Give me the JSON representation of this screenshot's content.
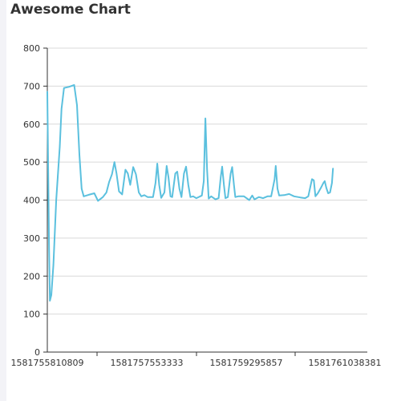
{
  "page": {
    "title": "Awesome Chart"
  },
  "colors": {
    "line": "#5bc0de",
    "grid": "#d9d9d9",
    "axis": "#333333",
    "background": "#ffffff"
  },
  "chart_data": {
    "type": "line",
    "title": "Awesome Chart",
    "xlabel": "",
    "ylabel": "",
    "ylim": [
      0,
      800
    ],
    "y_ticks": [
      0,
      100,
      200,
      300,
      400,
      500,
      600,
      700,
      800
    ],
    "x_ticks": [
      "1581755810809",
      "1581757553333",
      "1581759295857",
      "1581761038381"
    ],
    "xlim": [
      1581755810809,
      1581760984385
    ],
    "grid": "horizontal",
    "legend": "none",
    "series": [
      {
        "color": "#5bc0de",
        "points": [
          [
            1581755810809,
            685
          ],
          [
            1581755839000,
            270
          ],
          [
            1581755852000,
            135
          ],
          [
            1581755876000,
            150
          ],
          [
            1581755910000,
            230
          ],
          [
            1581755955000,
            400
          ],
          [
            1581756012000,
            540
          ],
          [
            1581756040000,
            640
          ],
          [
            1581756080000,
            695
          ],
          [
            1581756160000,
            698
          ],
          [
            1581756245000,
            703
          ],
          [
            1581756290000,
            650
          ],
          [
            1581756330000,
            520
          ],
          [
            1581756366000,
            430
          ],
          [
            1581756400000,
            410
          ],
          [
            1581756480000,
            414
          ],
          [
            1581756570000,
            418
          ],
          [
            1581756630000,
            398
          ],
          [
            1581756710000,
            408
          ],
          [
            1581756766000,
            420
          ],
          [
            1581756810000,
            448
          ],
          [
            1581756856000,
            468
          ],
          [
            1581756896000,
            500
          ],
          [
            1581756930000,
            470
          ],
          [
            1581756970000,
            423
          ],
          [
            1581757020000,
            415
          ],
          [
            1581757074000,
            480
          ],
          [
            1581757112000,
            470
          ],
          [
            1581757152000,
            440
          ],
          [
            1581757200000,
            487
          ],
          [
            1581757244000,
            468
          ],
          [
            1581757290000,
            420
          ],
          [
            1581757330000,
            410
          ],
          [
            1581757380000,
            413
          ],
          [
            1581757432000,
            408
          ],
          [
            1581757520000,
            408
          ],
          [
            1581757560000,
            445
          ],
          [
            1581757588000,
            496
          ],
          [
            1581757620000,
            440
          ],
          [
            1581757652000,
            406
          ],
          [
            1581757704000,
            420
          ],
          [
            1581757740000,
            490
          ],
          [
            1581757770000,
            460
          ],
          [
            1581757802000,
            410
          ],
          [
            1581757830000,
            408
          ],
          [
            1581757880000,
            470
          ],
          [
            1581757912000,
            475
          ],
          [
            1581757946000,
            430
          ],
          [
            1581757980000,
            408
          ],
          [
            1581758020000,
            470
          ],
          [
            1581758054000,
            488
          ],
          [
            1581758090000,
            440
          ],
          [
            1581758124000,
            408
          ],
          [
            1581758170000,
            410
          ],
          [
            1581758220000,
            405
          ],
          [
            1581758310000,
            412
          ],
          [
            1581758340000,
            450
          ],
          [
            1581758367000,
            615
          ],
          [
            1581758394000,
            480
          ],
          [
            1581758420000,
            404
          ],
          [
            1581758460000,
            410
          ],
          [
            1581758530000,
            402
          ],
          [
            1581758580000,
            405
          ],
          [
            1581758614000,
            460
          ],
          [
            1581758638000,
            488
          ],
          [
            1581758666000,
            440
          ],
          [
            1581758690000,
            405
          ],
          [
            1581758730000,
            408
          ],
          [
            1581758775000,
            470
          ],
          [
            1581758800000,
            487
          ],
          [
            1581758828000,
            440
          ],
          [
            1581758850000,
            408
          ],
          [
            1581758900000,
            410
          ],
          [
            1581758990000,
            410
          ],
          [
            1581759076000,
            400
          ],
          [
            1581759124000,
            412
          ],
          [
            1581759160000,
            402
          ],
          [
            1581759230000,
            408
          ],
          [
            1581759300000,
            405
          ],
          [
            1581759370000,
            410
          ],
          [
            1581759430000,
            410
          ],
          [
            1581759485000,
            455
          ],
          [
            1581759504000,
            490
          ],
          [
            1581759532000,
            430
          ],
          [
            1581759560000,
            412
          ],
          [
            1581759640000,
            413
          ],
          [
            1581759720000,
            416
          ],
          [
            1581759800000,
            410
          ],
          [
            1581759900000,
            407
          ],
          [
            1581759980000,
            405
          ],
          [
            1581760030000,
            410
          ],
          [
            1581760090000,
            455
          ],
          [
            1581760120000,
            452
          ],
          [
            1581760146000,
            410
          ],
          [
            1581760184000,
            418
          ],
          [
            1581760234000,
            432
          ],
          [
            1581760274000,
            445
          ],
          [
            1581760296000,
            450
          ],
          [
            1581760322000,
            432
          ],
          [
            1581760352000,
            418
          ],
          [
            1581760382000,
            420
          ],
          [
            1581760412000,
            445
          ],
          [
            1581760430000,
            483
          ]
        ]
      }
    ]
  }
}
